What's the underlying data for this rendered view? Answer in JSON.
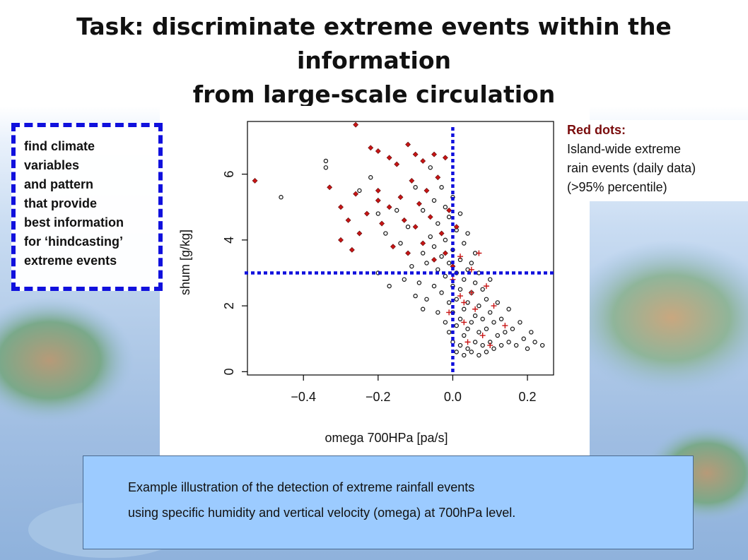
{
  "slide": {
    "title_line1": "Task: discriminate extreme events within the information",
    "title_line2": "from large-scale circulation"
  },
  "note": {
    "lines": [
      "find climate",
      "variables",
      "and pattern",
      "that provide",
      "best information",
      "for ‘hindcasting’",
      "extreme events"
    ]
  },
  "legend": {
    "title": "Red dots:",
    "lines": [
      "Island-wide extreme",
      "rain events (daily data)",
      "(>95% percentile)"
    ]
  },
  "caption": {
    "line1": "Example illustration of the detection of extreme rainfall events",
    "line2": "using specific humidity and vertical velocity (omega) at 700hPa level."
  },
  "colors": {
    "black_points": "#111111",
    "red_points": "#c81414",
    "dotted_lines": "#1010dd"
  },
  "chart_data": {
    "type": "scatter",
    "title": "",
    "xlabel": "omega 700HPa [pa/s]",
    "ylabel": "shum [g/kg]",
    "xlim": [
      -0.55,
      0.27
    ],
    "ylim": [
      -0.1,
      7.6
    ],
    "xticks": [
      -0.4,
      -0.2,
      0.0,
      0.2
    ],
    "xtick_labels": [
      "−0.4",
      "−0.2",
      "0.0",
      "0.2"
    ],
    "yticks": [
      0,
      2,
      4,
      6
    ],
    "ytick_labels": [
      "0",
      "2",
      "4",
      "6"
    ],
    "grid": false,
    "threshold_lines": {
      "x": 0.0,
      "y": 3.0
    },
    "series": [
      {
        "marker": "circle",
        "color": "#111111",
        "points": [
          [
            -0.46,
            5.3
          ],
          [
            -0.34,
            6.4
          ],
          [
            -0.34,
            6.2
          ],
          [
            -0.25,
            5.5
          ],
          [
            -0.22,
            5.9
          ],
          [
            -0.2,
            4.8
          ],
          [
            -0.18,
            4.2
          ],
          [
            -0.15,
            4.9
          ],
          [
            -0.14,
            3.9
          ],
          [
            -0.12,
            4.4
          ],
          [
            -0.11,
            3.2
          ],
          [
            -0.1,
            5.6
          ],
          [
            -0.09,
            2.7
          ],
          [
            -0.08,
            3.6
          ],
          [
            -0.08,
            4.9
          ],
          [
            -0.07,
            2.2
          ],
          [
            -0.07,
            3.3
          ],
          [
            -0.06,
            4.1
          ],
          [
            -0.06,
            6.2
          ],
          [
            -0.05,
            2.6
          ],
          [
            -0.05,
            3.8
          ],
          [
            -0.05,
            5.2
          ],
          [
            -0.04,
            1.8
          ],
          [
            -0.04,
            3.1
          ],
          [
            -0.04,
            4.5
          ],
          [
            -0.03,
            2.4
          ],
          [
            -0.03,
            3.5
          ],
          [
            -0.03,
            5.6
          ],
          [
            -0.02,
            1.5
          ],
          [
            -0.02,
            2.9
          ],
          [
            -0.02,
            4.0
          ],
          [
            -0.02,
            5.0
          ],
          [
            -0.01,
            1.2
          ],
          [
            -0.01,
            2.1
          ],
          [
            -0.01,
            3.3
          ],
          [
            -0.01,
            4.7
          ],
          [
            0.0,
            0.9
          ],
          [
            0.0,
            1.8
          ],
          [
            0.0,
            2.6
          ],
          [
            0.0,
            3.7
          ],
          [
            0.0,
            5.3
          ],
          [
            0.01,
            0.6
          ],
          [
            0.01,
            1.4
          ],
          [
            0.01,
            2.2
          ],
          [
            0.01,
            3.0
          ],
          [
            0.01,
            4.3
          ],
          [
            0.02,
            0.8
          ],
          [
            0.02,
            1.6
          ],
          [
            0.02,
            2.5
          ],
          [
            0.02,
            3.4
          ],
          [
            0.02,
            4.8
          ],
          [
            0.03,
            0.5
          ],
          [
            0.03,
            1.1
          ],
          [
            0.03,
            1.9
          ],
          [
            0.03,
            2.8
          ],
          [
            0.03,
            3.9
          ],
          [
            0.04,
            0.7
          ],
          [
            0.04,
            1.3
          ],
          [
            0.04,
            2.1
          ],
          [
            0.04,
            3.1
          ],
          [
            0.04,
            4.2
          ],
          [
            0.05,
            0.6
          ],
          [
            0.05,
            1.5
          ],
          [
            0.05,
            2.4
          ],
          [
            0.05,
            3.3
          ],
          [
            0.06,
            0.9
          ],
          [
            0.06,
            1.7
          ],
          [
            0.06,
            2.7
          ],
          [
            0.06,
            3.6
          ],
          [
            0.07,
            0.5
          ],
          [
            0.07,
            1.2
          ],
          [
            0.07,
            2.0
          ],
          [
            0.07,
            3.0
          ],
          [
            0.08,
            0.8
          ],
          [
            0.08,
            1.6
          ],
          [
            0.08,
            2.5
          ],
          [
            0.09,
            0.6
          ],
          [
            0.09,
            1.3
          ],
          [
            0.09,
            2.2
          ],
          [
            0.1,
            0.9
          ],
          [
            0.1,
            1.8
          ],
          [
            0.1,
            2.8
          ],
          [
            0.11,
            0.7
          ],
          [
            0.11,
            1.5
          ],
          [
            0.12,
            1.1
          ],
          [
            0.12,
            2.1
          ],
          [
            0.13,
            0.8
          ],
          [
            0.13,
            1.6
          ],
          [
            0.14,
            1.2
          ],
          [
            0.15,
            0.9
          ],
          [
            0.15,
            1.9
          ],
          [
            0.16,
            1.3
          ],
          [
            0.17,
            0.8
          ],
          [
            0.18,
            1.5
          ],
          [
            0.19,
            1.0
          ],
          [
            0.2,
            0.7
          ],
          [
            0.21,
            1.2
          ],
          [
            0.22,
            0.9
          ],
          [
            0.24,
            0.8
          ],
          [
            -0.2,
            3.0
          ],
          [
            -0.17,
            2.6
          ],
          [
            -0.13,
            2.8
          ],
          [
            -0.1,
            2.3
          ],
          [
            -0.08,
            1.9
          ]
        ]
      },
      {
        "name": "Island-wide extreme rain events",
        "marker": "diamond",
        "color": "#c81414",
        "points": [
          [
            -0.53,
            5.8
          ],
          [
            -0.26,
            7.5
          ],
          [
            -0.22,
            6.8
          ],
          [
            -0.2,
            6.7
          ],
          [
            -0.2,
            5.2
          ],
          [
            -0.17,
            6.5
          ],
          [
            -0.15,
            6.3
          ],
          [
            -0.12,
            6.9
          ],
          [
            -0.1,
            6.6
          ],
          [
            -0.08,
            6.4
          ],
          [
            -0.05,
            6.6
          ],
          [
            -0.02,
            6.5
          ],
          [
            -0.3,
            5.0
          ],
          [
            -0.28,
            4.6
          ],
          [
            -0.26,
            5.4
          ],
          [
            -0.25,
            4.2
          ],
          [
            -0.23,
            4.8
          ],
          [
            -0.2,
            5.5
          ],
          [
            -0.19,
            4.5
          ],
          [
            -0.17,
            5.0
          ],
          [
            -0.16,
            3.8
          ],
          [
            -0.14,
            5.3
          ],
          [
            -0.13,
            4.6
          ],
          [
            -0.12,
            3.6
          ],
          [
            -0.11,
            5.8
          ],
          [
            -0.1,
            4.4
          ],
          [
            -0.09,
            5.1
          ],
          [
            -0.08,
            3.9
          ],
          [
            -0.07,
            5.5
          ],
          [
            -0.06,
            4.7
          ],
          [
            -0.05,
            3.4
          ],
          [
            -0.04,
            5.9
          ],
          [
            -0.03,
            4.2
          ],
          [
            -0.02,
            3.6
          ],
          [
            -0.01,
            4.9
          ],
          [
            0.0,
            3.2
          ],
          [
            0.01,
            4.4
          ],
          [
            -0.3,
            4.0
          ],
          [
            -0.33,
            5.6
          ],
          [
            -0.27,
            3.7
          ]
        ]
      },
      {
        "name": "Island-wide extreme rain events",
        "marker": "plus",
        "color": "#c81414",
        "points": [
          [
            0.0,
            2.8
          ],
          [
            0.02,
            3.5
          ],
          [
            0.03,
            2.1
          ],
          [
            0.03,
            1.5
          ],
          [
            0.05,
            3.1
          ],
          [
            0.05,
            2.4
          ],
          [
            0.06,
            1.9
          ],
          [
            0.07,
            3.6
          ],
          [
            0.08,
            1.1
          ],
          [
            0.09,
            2.6
          ],
          [
            0.1,
            0.8
          ],
          [
            0.11,
            2.0
          ],
          [
            0.14,
            1.4
          ],
          [
            0.04,
            0.9
          ],
          [
            -0.01,
            1.8
          ],
          [
            0.02,
            2.3
          ]
        ]
      }
    ]
  }
}
